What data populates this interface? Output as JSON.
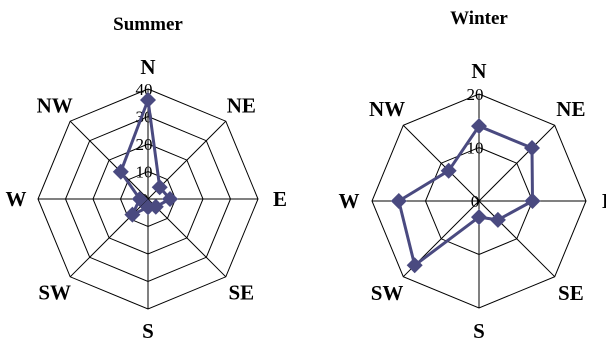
{
  "chart_data": [
    {
      "type": "radar",
      "title": "Summer",
      "directions": [
        "N",
        "NE",
        "E",
        "SE",
        "S",
        "SW",
        "W",
        "NW"
      ],
      "rmax": 40,
      "ticks": [
        0,
        10,
        20,
        30,
        40
      ],
      "tick_labels": [
        "0",
        "10",
        "20",
        "30",
        "40"
      ],
      "series": [
        {
          "values": [
            36,
            6,
            8,
            4,
            3,
            8,
            3,
            14
          ],
          "color": "#4a4a80"
        }
      ]
    },
    {
      "type": "radar",
      "title": "Winter",
      "directions": [
        "N",
        "NE",
        "E",
        "SE",
        "S",
        "SW",
        "W",
        "NW"
      ],
      "rmax": 20,
      "ticks": [
        0,
        10,
        20
      ],
      "tick_labels": [
        "0",
        "10",
        "20"
      ],
      "series": [
        {
          "values": [
            14,
            14,
            10,
            5,
            3,
            17,
            15,
            8
          ],
          "color": "#4a4a80"
        }
      ]
    }
  ]
}
